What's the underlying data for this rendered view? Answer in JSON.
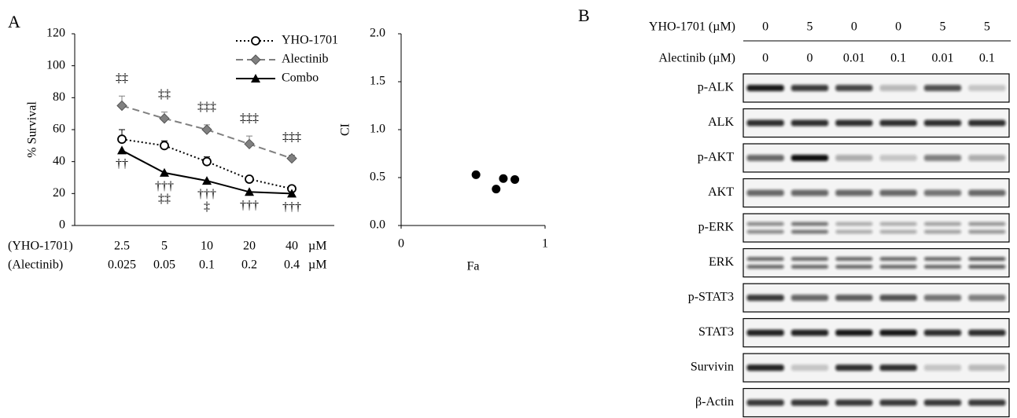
{
  "chart_data": [
    {
      "type": "line",
      "panel_label": "A",
      "ylabel": "% Survival",
      "categories": [
        "2.5",
        "5",
        "10",
        "20",
        "40"
      ],
      "categories2": [
        "0.025",
        "0.05",
        "0.1",
        "0.2",
        "0.4"
      ],
      "category_titles": [
        "(YHO-1701)",
        "(Alectinib)"
      ],
      "category_unit": "µM",
      "ylim": [
        0,
        120
      ],
      "yticks": [
        0,
        20,
        40,
        60,
        80,
        100,
        120
      ],
      "series": [
        {
          "name": "YHO-1701",
          "color": "#000000",
          "style": "dotted",
          "marker": "open-circle",
          "values": [
            54,
            50,
            40,
            29,
            23
          ],
          "errors": [
            6,
            3,
            3,
            2,
            1
          ]
        },
        {
          "name": "Alectinib",
          "color": "#808080",
          "style": "dashed",
          "marker": "diamond",
          "values": [
            75,
            67,
            60,
            51,
            42
          ],
          "errors": [
            6,
            4,
            3,
            5,
            2
          ]
        },
        {
          "name": "Combo",
          "color": "#000000",
          "style": "solid",
          "marker": "triangle",
          "values": [
            47,
            33,
            28,
            21,
            20
          ],
          "errors": [
            0,
            0,
            0,
            0,
            0
          ]
        }
      ],
      "sig_above": [
        "‡‡",
        "‡‡",
        "‡‡‡",
        "‡‡‡",
        "‡‡‡"
      ],
      "sig_below": [
        [
          "††"
        ],
        [
          "†††",
          "‡‡"
        ],
        [
          "†††",
          "‡"
        ],
        [
          "†††"
        ],
        [
          "†††"
        ]
      ]
    },
    {
      "type": "scatter",
      "xlabel": "Fa",
      "ylabel": "CI",
      "color": "#000000",
      "x": [
        0.52,
        0.66,
        0.71,
        0.79
      ],
      "values": [
        0.53,
        0.38,
        0.49,
        0.48
      ],
      "xlim": [
        0,
        1
      ],
      "xticks": [
        0,
        1
      ],
      "ylim": [
        0,
        2
      ],
      "yticks": [
        {
          "value": 0,
          "label": "0.0"
        },
        {
          "value": 0.5,
          "label": "0.5"
        },
        {
          "value": 1,
          "label": "1.0"
        },
        {
          "value": 1.5,
          "label": "1.5"
        },
        {
          "value": 2,
          "label": "2.0"
        }
      ]
    }
  ],
  "blot": {
    "panel_label": "B",
    "treatments": [
      {
        "label": "YHO-1701 (µM)",
        "values": [
          "0",
          "5",
          "0",
          "0",
          "5",
          "5"
        ]
      },
      {
        "label": "Alectinib (µM)",
        "values": [
          "0",
          "0",
          "0.01",
          "0.1",
          "0.01",
          "0.1"
        ]
      }
    ],
    "rows": [
      "p-ALK",
      "ALK",
      "p-AKT",
      "AKT",
      "p-ERK",
      "ERK",
      "p-STAT3",
      "STAT3",
      "Survivin",
      "β-Actin"
    ]
  }
}
